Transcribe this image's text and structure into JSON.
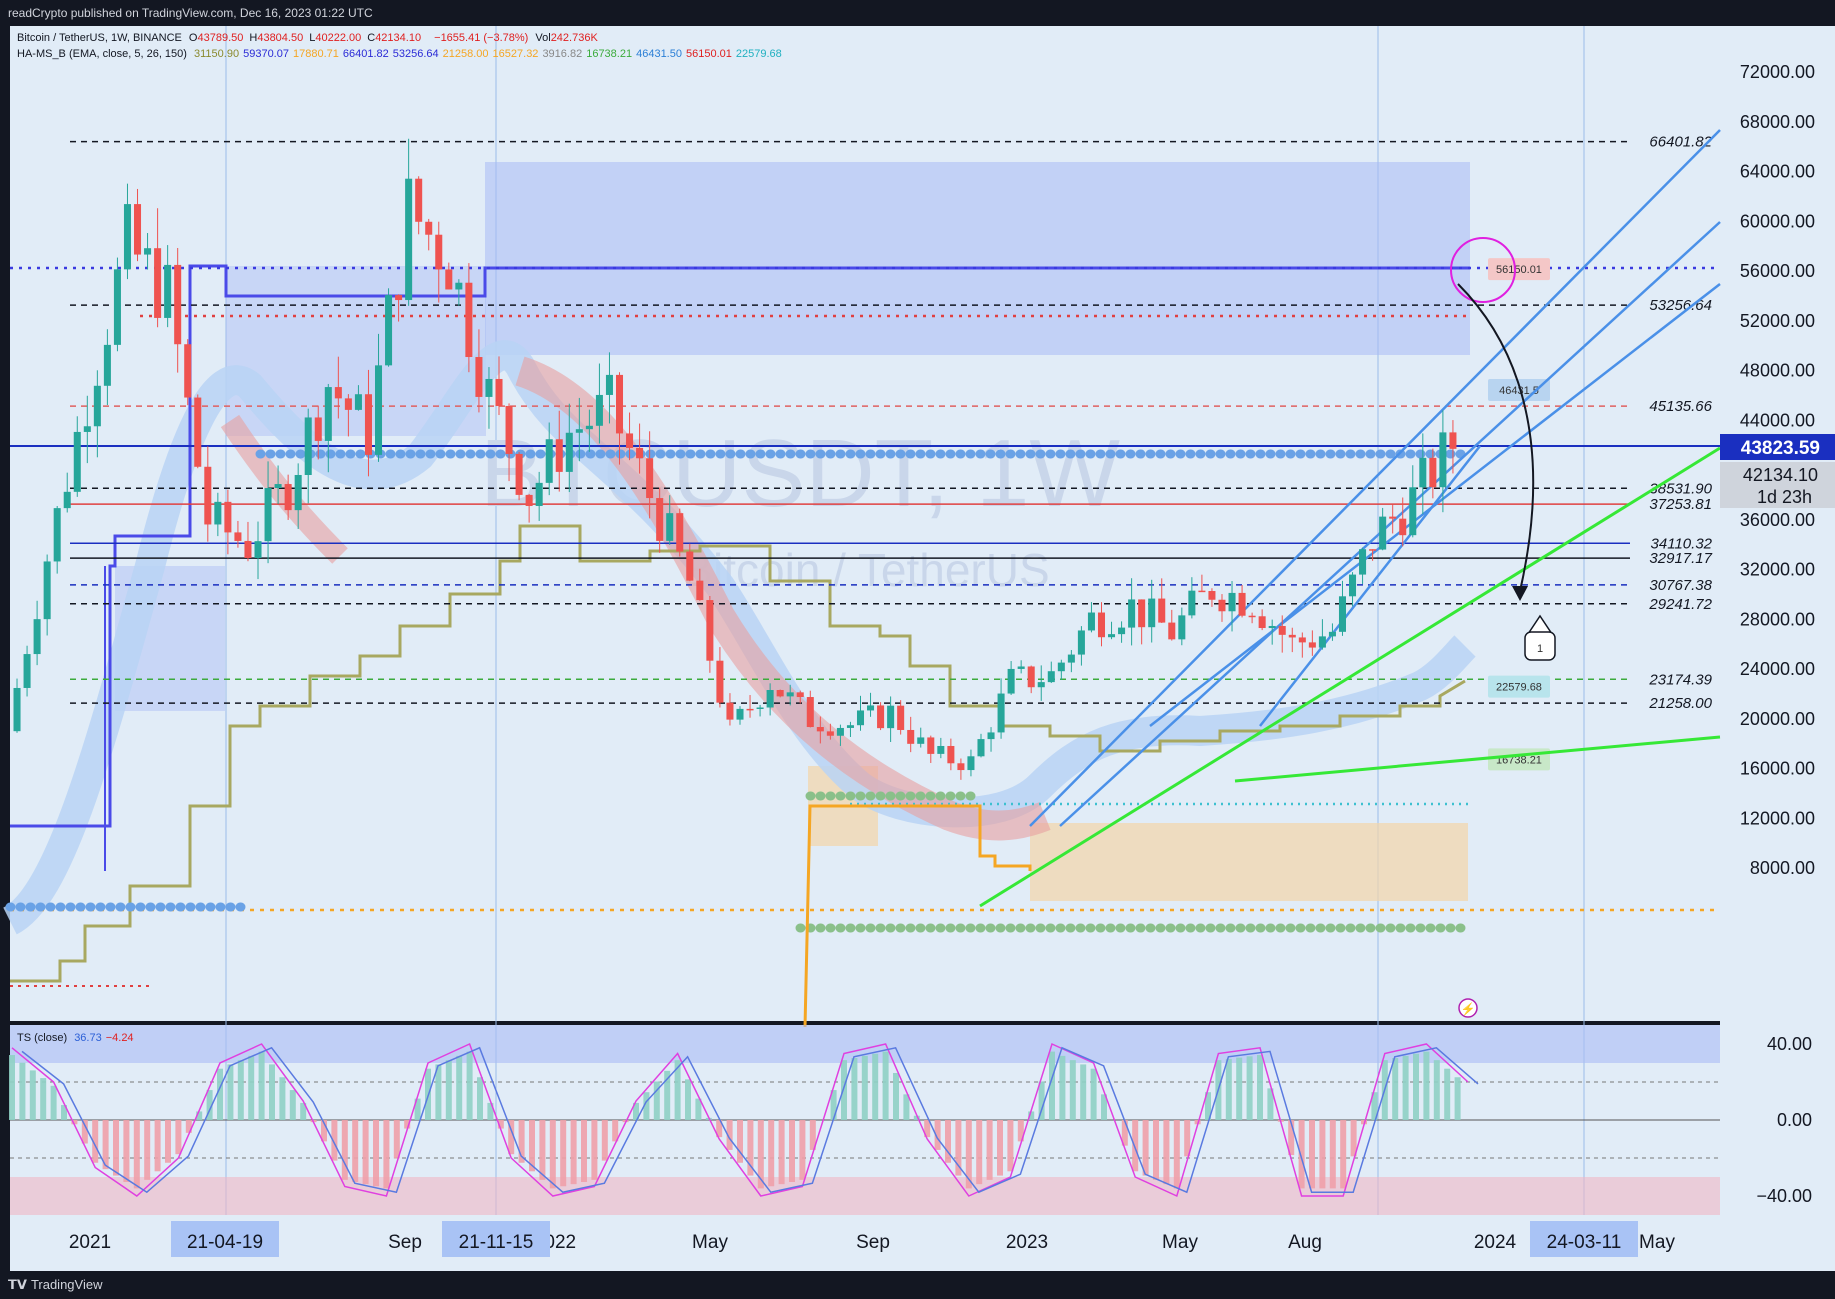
{
  "header": {
    "publish_line": "readCrypto published on TradingView.com, Dec 16, 2023 01:22 UTC"
  },
  "footer": {
    "brand": "TradingView"
  },
  "legend": {
    "symbol": "Bitcoin / TetherUS, 1W, BINANCE",
    "ohlc": [
      {
        "label": "O",
        "value": "43789.50"
      },
      {
        "label": "H",
        "value": "43804.50"
      },
      {
        "label": "L",
        "value": "40222.00"
      },
      {
        "label": "C",
        "value": "42134.10"
      }
    ],
    "change": "−1655.41 (−3.78%)",
    "vol_label": "Vol",
    "vol_value": "242.736K",
    "indicator_name": "HA-MS_B (EMA, close, 5, 26, 150)",
    "indicator_values": [
      {
        "value": "31150.90",
        "color": "#8a8a2e"
      },
      {
        "value": "59370.07",
        "color": "#2b2bd6"
      },
      {
        "value": "17880.71",
        "color": "#f5a623"
      },
      {
        "value": "66401.82",
        "color": "#2b2bd6"
      },
      {
        "value": "53256.64",
        "color": "#2b2bd6"
      },
      {
        "value": "21258.00",
        "color": "#f5a623"
      },
      {
        "value": "16527.32",
        "color": "#f5a623"
      },
      {
        "value": "3916.82",
        "color": "#888888"
      },
      {
        "value": "16738.21",
        "color": "#3cab3c"
      },
      {
        "value": "46431.50",
        "color": "#2b7fd6"
      },
      {
        "value": "56150.01",
        "color": "#e02020"
      },
      {
        "value": "22579.68",
        "color": "#20b0c0"
      }
    ],
    "ts_name": "TS (close)",
    "ts_values": [
      {
        "value": "36.73",
        "color": "#2b5fd6"
      },
      {
        "value": "−4.24",
        "color": "#e02020"
      }
    ]
  },
  "watermark": {
    "symbol": "BTCUSDT, 1W",
    "name": "Bitcoin / TetherUS"
  },
  "price_axis": {
    "ticks": [
      "72000.00",
      "68000.00",
      "64000.00",
      "60000.00",
      "56000.00",
      "52000.00",
      "48000.00",
      "44000.00",
      "40000.00",
      "36000.00",
      "32000.00",
      "28000.00",
      "24000.00",
      "20000.00",
      "16000.00",
      "12000.00",
      "8000.00"
    ],
    "current_price": "43823.59",
    "last_close": "42134.10",
    "countdown": "1d 23h"
  },
  "osc_axis": {
    "ticks": [
      "40.00",
      "0.00",
      "−40.00"
    ]
  },
  "time_axis": {
    "labels": [
      "2021",
      "Sep",
      "2022",
      "May",
      "Sep",
      "2023",
      "May",
      "Aug",
      "2024",
      "May"
    ],
    "cursor_labels": [
      "21-04-19",
      "21-11-15",
      "24-03-11"
    ]
  },
  "levels": [
    {
      "value": "66401.82",
      "color": "#131722",
      "style": "dash"
    },
    {
      "value": "53256.64",
      "color": "#131722",
      "style": "dash"
    },
    {
      "value": "45135.66",
      "color": "#e06060",
      "style": "dash"
    },
    {
      "value": "38531.90",
      "color": "#131722",
      "style": "dash"
    },
    {
      "value": "37253.81",
      "color": "#e04040",
      "style": "solid"
    },
    {
      "value": "34110.32",
      "color": "#1a2fc0",
      "style": "solid"
    },
    {
      "value": "32917.17",
      "color": "#131722",
      "style": "solid"
    },
    {
      "value": "30767.38",
      "color": "#1a2fc0",
      "style": "dash"
    },
    {
      "value": "29241.72",
      "color": "#131722",
      "style": "dash"
    },
    {
      "value": "23174.39",
      "color": "#3cab3c",
      "style": "dash"
    },
    {
      "value": "21258.00",
      "color": "#131722",
      "style": "dash"
    }
  ],
  "level_tags": [
    {
      "value": "56150.01",
      "color": "#f4c7c7"
    },
    {
      "value": "46431.5",
      "color": "#b8d4f0"
    },
    {
      "value": "22579.68",
      "color": "#b8e4ec"
    },
    {
      "value": "16738.21",
      "color": "#c8e8c8"
    }
  ],
  "callout": {
    "label": "1"
  },
  "chart_data": {
    "type": "candlestick",
    "title": "BTCUSDT, 1W",
    "subtitle": "Bitcoin / TetherUS",
    "ylim": [
      8000,
      74000
    ],
    "yscale": "linear",
    "grid": false,
    "x_labels": [
      "2021",
      "Sep",
      "2022",
      "May",
      "Sep",
      "2023",
      "May",
      "Aug",
      "2024",
      "May"
    ],
    "price_path": [
      {
        "date": "2020-12",
        "close": 19000
      },
      {
        "date": "2021-01",
        "close": 33000
      },
      {
        "date": "2021-02",
        "close": 46000
      },
      {
        "date": "2021-03",
        "close": 58000
      },
      {
        "date": "2021-04",
        "close": 54000
      },
      {
        "date": "2021-05",
        "close": 36000
      },
      {
        "date": "2021-06",
        "close": 34000
      },
      {
        "date": "2021-07",
        "close": 39000
      },
      {
        "date": "2021-08",
        "close": 47000
      },
      {
        "date": "2021-09",
        "close": 43000
      },
      {
        "date": "2021-10",
        "close": 61000
      },
      {
        "date": "2021-11",
        "close": 57000
      },
      {
        "date": "2021-12",
        "close": 46000
      },
      {
        "date": "2022-01",
        "close": 38000
      },
      {
        "date": "2022-02",
        "close": 43000
      },
      {
        "date": "2022-03",
        "close": 45000
      },
      {
        "date": "2022-04",
        "close": 38000
      },
      {
        "date": "2022-05",
        "close": 31000
      },
      {
        "date": "2022-06",
        "close": 19000
      },
      {
        "date": "2022-07",
        "close": 23000
      },
      {
        "date": "2022-08",
        "close": 20000
      },
      {
        "date": "2022-09",
        "close": 19500
      },
      {
        "date": "2022-10",
        "close": 20500
      },
      {
        "date": "2022-11",
        "close": 17000
      },
      {
        "date": "2022-12",
        "close": 16500
      },
      {
        "date": "2023-01",
        "close": 23000
      },
      {
        "date": "2023-02",
        "close": 23500
      },
      {
        "date": "2023-03",
        "close": 28000
      },
      {
        "date": "2023-04",
        "close": 29000
      },
      {
        "date": "2023-05",
        "close": 27000
      },
      {
        "date": "2023-06",
        "close": 30500
      },
      {
        "date": "2023-07",
        "close": 29500
      },
      {
        "date": "2023-08",
        "close": 26000
      },
      {
        "date": "2023-09",
        "close": 27000
      },
      {
        "date": "2023-10",
        "close": 34500
      },
      {
        "date": "2023-11",
        "close": 37700
      },
      {
        "date": "2023-12",
        "close": 42134
      }
    ],
    "oscillator": {
      "name": "TS (close)",
      "ylim": [
        -50,
        50
      ],
      "series": [
        {
          "name": "36.73",
          "values": [
            38,
            20,
            -25,
            -40,
            -20,
            30,
            40,
            10,
            -35,
            -40,
            30,
            40,
            -20,
            -40,
            -35,
            10,
            35,
            -10,
            -40,
            -35,
            35,
            40,
            -10,
            -40,
            -30,
            40,
            30,
            -30,
            -40,
            35,
            38,
            -40,
            -40,
            35,
            40,
            20
          ]
        }
      ]
    }
  }
}
